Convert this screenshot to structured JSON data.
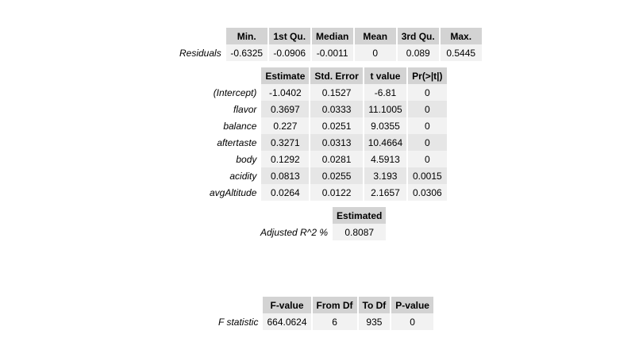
{
  "residuals": {
    "headers": [
      "Min.",
      "1st Qu.",
      "Median",
      "Mean",
      "3rd Qu.",
      "Max."
    ],
    "row_label": "Residuals",
    "values": [
      "-0.6325",
      "-0.0906",
      "-0.0011",
      "0",
      "0.089",
      "0.5445"
    ]
  },
  "coefficients": {
    "headers": [
      "Estimate",
      "Std. Error",
      "t value",
      "Pr(>|t|)"
    ],
    "rows": [
      {
        "label": "(Intercept)",
        "values": [
          "-1.0402",
          "0.1527",
          "-6.81",
          "0"
        ]
      },
      {
        "label": "flavor",
        "values": [
          "0.3697",
          "0.0333",
          "11.1005",
          "0"
        ]
      },
      {
        "label": "balance",
        "values": [
          "0.227",
          "0.0251",
          "9.0355",
          "0"
        ]
      },
      {
        "label": "aftertaste",
        "values": [
          "0.3271",
          "0.0313",
          "10.4664",
          "0"
        ]
      },
      {
        "label": "body",
        "values": [
          "0.1292",
          "0.0281",
          "4.5913",
          "0"
        ]
      },
      {
        "label": "acidity",
        "values": [
          "0.0813",
          "0.0255",
          "3.193",
          "0.0015"
        ]
      },
      {
        "label": "avgAltitude",
        "values": [
          "0.0264",
          "0.0122",
          "2.1657",
          "0.0306"
        ]
      }
    ]
  },
  "r_squared": {
    "header": "Estimated",
    "row_label": "Adjusted R^2 %",
    "value": "0.8087"
  },
  "f_statistic": {
    "headers": [
      "F-value",
      "From Df",
      "To Df",
      "P-value"
    ],
    "row_label": "F statistic",
    "values": [
      "664.0624",
      "6",
      "935",
      "0"
    ]
  }
}
